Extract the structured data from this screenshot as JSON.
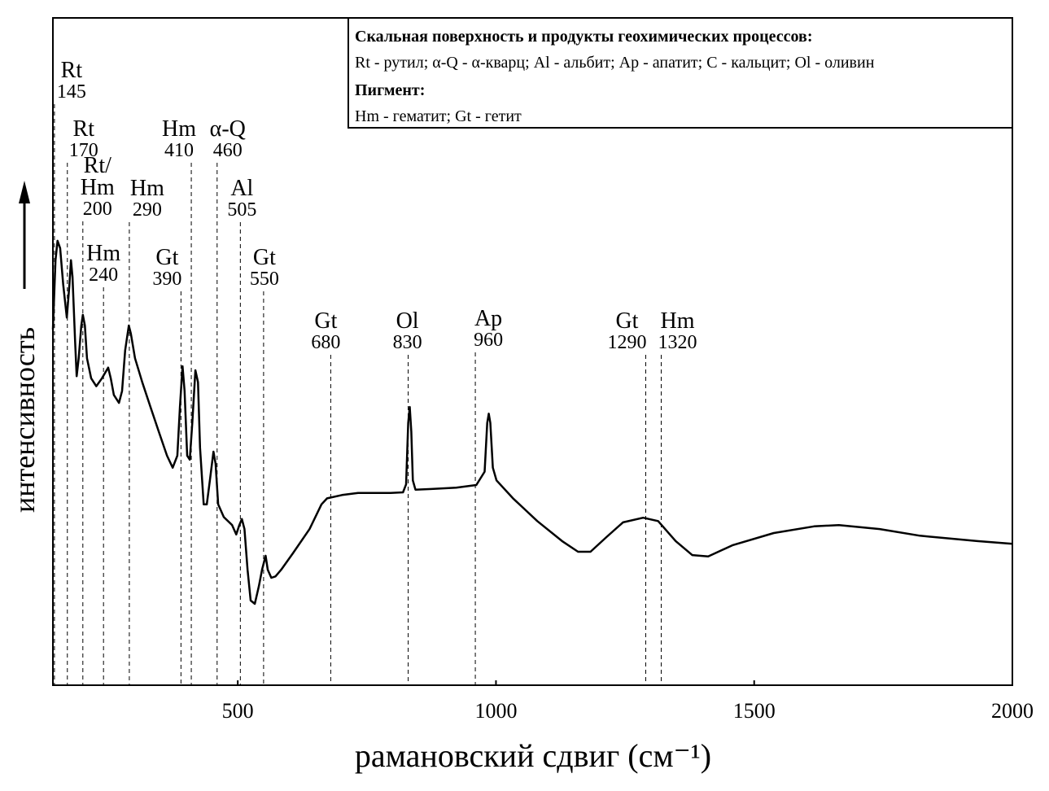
{
  "chart_data": {
    "type": "line",
    "xlabel": "рамановский сдвиг (см⁻¹)",
    "ylabel": "интенсивность",
    "xlim": [
      142,
      2000
    ],
    "ylim": [
      0,
      100
    ],
    "xticks": [
      500,
      1000,
      1500,
      2000
    ],
    "legend_box": [
      "Скальная поверхность и продукты геохимических процессов:",
      "Rt - рутил; α-Q - α-кварц; Al - альбит; Ap - апатит; C - кальцит; Ol - оливин",
      "Пигмент:",
      "Hm - гематит; Gt - гетит"
    ],
    "annotations": [
      {
        "label": [
          "Rt"
        ],
        "value": 145
      },
      {
        "label": [
          "Rt"
        ],
        "value": 170
      },
      {
        "label": [
          "Rt/",
          "Hm"
        ],
        "value": 200
      },
      {
        "label": [
          "Hm"
        ],
        "value": 240
      },
      {
        "label": [
          "Hm"
        ],
        "value": 290
      },
      {
        "label": [
          "Gt"
        ],
        "value": 390
      },
      {
        "label": [
          "Hm"
        ],
        "value": 410
      },
      {
        "label": [
          "α-Q"
        ],
        "value": 460
      },
      {
        "label": [
          "Al"
        ],
        "value": 505
      },
      {
        "label": [
          "Gt"
        ],
        "value": 550
      },
      {
        "label": [
          "Gt"
        ],
        "value": 680
      },
      {
        "label": [
          "Ol"
        ],
        "value": 830
      },
      {
        "label": [
          "Ap"
        ],
        "value": 960
      },
      {
        "label": [
          "Gt"
        ],
        "value": 1290
      },
      {
        "label": [
          "Hm"
        ],
        "value": 1320
      }
    ],
    "series": [
      {
        "color": "#000000",
        "x": [
          142,
          147,
          151,
          156,
          162,
          169,
          174,
          177,
          180,
          185,
          188,
          192,
          197,
          200,
          204,
          208,
          216,
          226,
          237,
          249,
          254,
          260,
          270,
          276,
          282,
          289,
          293,
          301,
          315,
          331,
          347,
          363,
          374,
          383,
          388,
          393,
          397,
          402,
          407,
          412,
          418,
          423,
          427,
          434,
          440,
          446,
          453,
          457,
          462,
          473,
          489,
          497,
          503,
          508,
          513,
          519,
          525,
          533,
          541,
          547,
          554,
          558,
          565,
          573,
          584,
          607,
          639,
          662,
          673,
          702,
          733,
          765,
          796,
          820,
          826,
          830,
          833,
          836,
          839,
          844,
          875,
          923,
          962,
          978,
          983,
          986,
          989,
          994,
          1001,
          1033,
          1080,
          1128,
          1159,
          1183,
          1214,
          1246,
          1285,
          1314,
          1348,
          1380,
          1411,
          1459,
          1538,
          1616,
          1664,
          1743,
          1821,
          1932,
          2000
        ],
        "values": [
          53.3,
          63.7,
          66.6,
          65.5,
          60.0,
          55.1,
          60.0,
          63.7,
          61.2,
          51.5,
          46.3,
          49.0,
          53.9,
          55.5,
          53.9,
          49.0,
          46.0,
          44.8,
          46.0,
          47.6,
          46.0,
          43.5,
          42.3,
          44.1,
          50.2,
          53.9,
          52.7,
          49.0,
          45.4,
          41.7,
          38.0,
          34.4,
          32.6,
          34.4,
          41.7,
          47.8,
          44.1,
          34.4,
          33.8,
          39.3,
          47.2,
          45.4,
          35.6,
          27.1,
          27.1,
          30.7,
          35.0,
          33.2,
          27.1,
          25.2,
          24.0,
          22.6,
          24.0,
          24.9,
          23.4,
          17.3,
          12.7,
          12.2,
          14.9,
          17.3,
          19.4,
          17.3,
          16.1,
          16.3,
          17.3,
          19.8,
          23.4,
          27.1,
          28.0,
          28.5,
          28.8,
          28.8,
          28.8,
          28.9,
          30.1,
          39.3,
          41.7,
          38.0,
          30.7,
          29.3,
          29.4,
          29.6,
          30.0,
          32.0,
          39.3,
          40.7,
          39.3,
          32.6,
          30.7,
          28.0,
          24.6,
          21.6,
          20.0,
          20.0,
          22.2,
          24.4,
          25.1,
          24.6,
          21.6,
          19.5,
          19.3,
          21.0,
          22.8,
          23.8,
          24.0,
          23.4,
          22.4,
          21.6,
          21.2
        ]
      }
    ]
  }
}
